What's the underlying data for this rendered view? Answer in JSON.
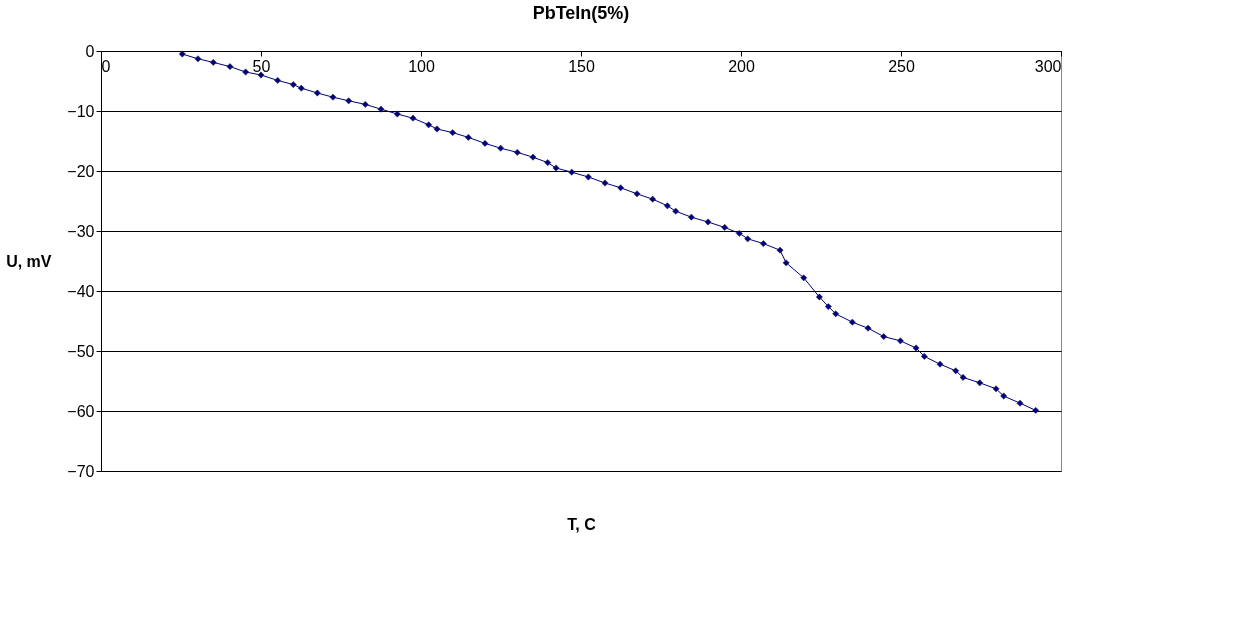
{
  "chart_data": {
    "type": "line",
    "title": "PbTeIn(5%)",
    "xlabel": "T, C",
    "ylabel": "U, mV",
    "x": [
      25.4,
      30.3,
      35.1,
      40.3,
      45.2,
      50.0,
      55.2,
      60.1,
      62.6,
      67.6,
      72.5,
      77.4,
      82.6,
      87.5,
      92.6,
      97.5,
      102.4,
      105.0,
      109.9,
      114.8,
      120.0,
      124.9,
      130.1,
      135.0,
      139.6,
      142.2,
      147.1,
      152.3,
      157.5,
      162.4,
      167.5,
      172.4,
      177.0,
      179.6,
      184.5,
      189.7,
      194.9,
      199.5,
      202.1,
      207.0,
      212.2,
      214.1,
      219.6,
      224.5,
      227.3,
      229.6,
      234.8,
      239.7,
      244.6,
      249.8,
      254.7,
      257.3,
      262.2,
      267.1,
      269.4,
      274.6,
      279.7,
      282.1,
      287.2,
      292.1
    ],
    "series": [
      {
        "color": "#000080",
        "values": [
          -0.5,
          -1.3,
          -1.9,
          -2.6,
          -3.5,
          -4.0,
          -4.9,
          -5.6,
          -6.2,
          -7.0,
          -7.7,
          -8.3,
          -8.9,
          -9.7,
          -10.5,
          -11.2,
          -12.3,
          -13.0,
          -13.6,
          -14.4,
          -15.4,
          -16.2,
          -16.9,
          -17.7,
          -18.6,
          -19.5,
          -20.2,
          -21.0,
          -22.0,
          -22.8,
          -23.8,
          -24.7,
          -25.8,
          -26.7,
          -27.7,
          -28.5,
          -29.4,
          -30.4,
          -31.3,
          -32.1,
          -33.2,
          -35.3,
          -37.8,
          -41.0,
          -42.6,
          -43.8,
          -45.2,
          -46.2,
          -47.6,
          -48.3,
          -49.5,
          -50.9,
          -52.2,
          -53.3,
          -54.4,
          -55.3,
          -56.3,
          -57.5,
          -58.7,
          -59.9
        ]
      }
    ],
    "xlim": [
      0,
      300
    ],
    "xticks": [
      0,
      50,
      100,
      150,
      200,
      250,
      300
    ],
    "ylim": [
      -70,
      0
    ],
    "yticks": [
      -70,
      -60,
      -50,
      -40,
      -30,
      -20,
      -10,
      0
    ],
    "grid": "y",
    "legend": false,
    "marker": "diamond",
    "line_style": "solid"
  }
}
